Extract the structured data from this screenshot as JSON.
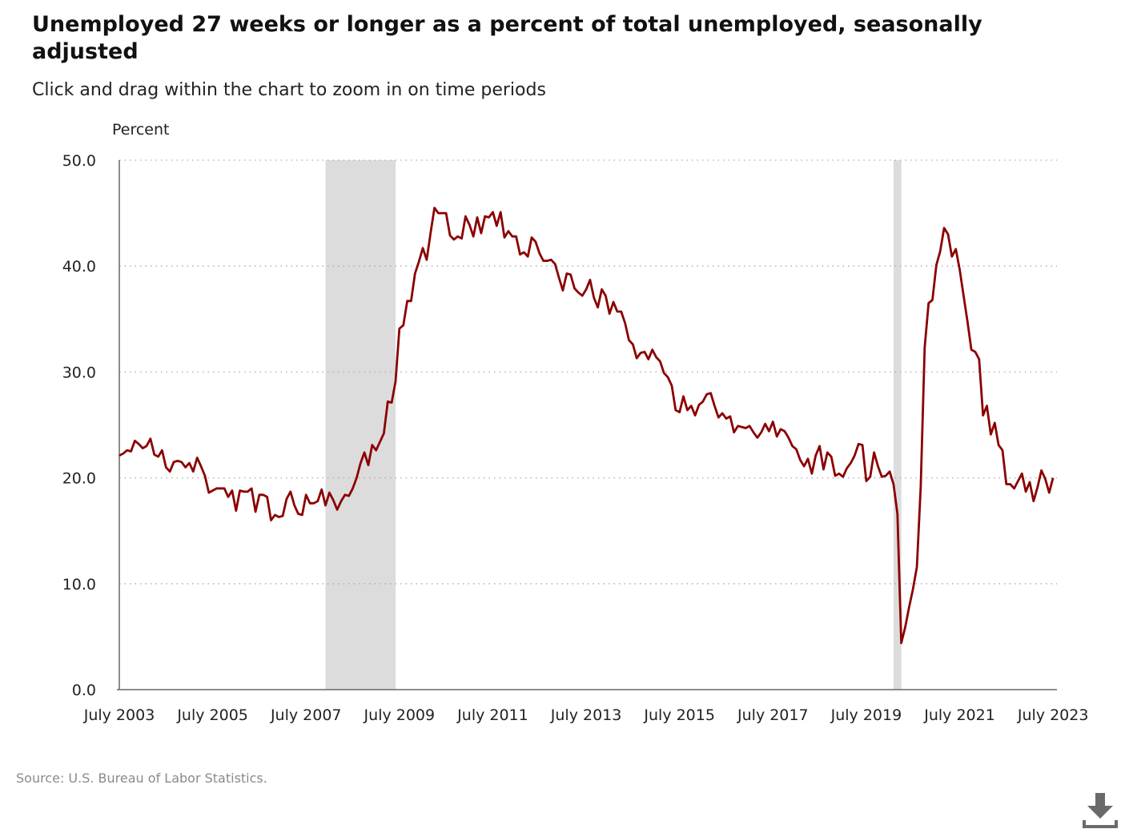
{
  "title": "Unemployed 27 weeks or longer as a percent of total unemployed, seasonally adjusted",
  "subtitle": "Click and drag within the chart to zoom in on time periods",
  "source": "Source: U.S. Bureau of Labor Statistics.",
  "download_icon": "download-icon",
  "colors": {
    "line": "#8b0000",
    "recession": "#dcdcdc",
    "grid": "#aaaaaa",
    "axis": "#666666"
  },
  "chart_data": {
    "type": "line",
    "ylabel": "Percent",
    "xlabel": "",
    "ylim": [
      0,
      50
    ],
    "y_ticks": [
      "0.0",
      "10.0",
      "20.0",
      "30.0",
      "40.0",
      "50.0"
    ],
    "x_ticks": [
      "July 2003",
      "July 2005",
      "July 2007",
      "July 2009",
      "July 2011",
      "July 2013",
      "July 2015",
      "July 2017",
      "July 2019",
      "July 2021",
      "July 2023"
    ],
    "x_range": [
      "2003-07",
      "2023-08"
    ],
    "grid": "horizontal dotted",
    "recessions": [
      [
        "2007-12",
        "2009-06"
      ],
      [
        "2020-02",
        "2020-04"
      ]
    ],
    "series": [
      {
        "points": [
          [
            "2003-07",
            22.1
          ],
          [
            "2003-08",
            22.3
          ],
          [
            "2003-09",
            22.6
          ],
          [
            "2003-10",
            22.5
          ],
          [
            "2003-11",
            23.5
          ],
          [
            "2003-12",
            23.2
          ],
          [
            "2004-01",
            22.8
          ],
          [
            "2004-02",
            23.0
          ],
          [
            "2004-03",
            23.7
          ],
          [
            "2004-04",
            22.2
          ],
          [
            "2004-05",
            22.0
          ],
          [
            "2004-06",
            22.6
          ],
          [
            "2004-07",
            21.0
          ],
          [
            "2004-08",
            20.6
          ],
          [
            "2004-09",
            21.5
          ],
          [
            "2004-10",
            21.6
          ],
          [
            "2004-11",
            21.5
          ],
          [
            "2004-12",
            21.0
          ],
          [
            "2005-01",
            21.4
          ],
          [
            "2005-02",
            20.6
          ],
          [
            "2005-03",
            21.9
          ],
          [
            "2005-04",
            21.1
          ],
          [
            "2005-05",
            20.2
          ],
          [
            "2005-06",
            18.6
          ],
          [
            "2005-07",
            18.8
          ],
          [
            "2005-08",
            19.0
          ],
          [
            "2005-09",
            19.0
          ],
          [
            "2005-10",
            19.0
          ],
          [
            "2005-11",
            18.2
          ],
          [
            "2005-12",
            18.8
          ],
          [
            "2006-01",
            16.9
          ],
          [
            "2006-02",
            18.8
          ],
          [
            "2006-03",
            18.7
          ],
          [
            "2006-04",
            18.7
          ],
          [
            "2006-05",
            19.0
          ],
          [
            "2006-06",
            16.8
          ],
          [
            "2006-07",
            18.4
          ],
          [
            "2006-08",
            18.4
          ],
          [
            "2006-09",
            18.2
          ],
          [
            "2006-10",
            16.0
          ],
          [
            "2006-11",
            16.5
          ],
          [
            "2006-12",
            16.3
          ],
          [
            "2007-01",
            16.4
          ],
          [
            "2007-02",
            18.0
          ],
          [
            "2007-03",
            18.7
          ],
          [
            "2007-04",
            17.4
          ],
          [
            "2007-05",
            16.6
          ],
          [
            "2007-06",
            16.5
          ],
          [
            "2007-07",
            18.4
          ],
          [
            "2007-08",
            17.6
          ],
          [
            "2007-09",
            17.6
          ],
          [
            "2007-10",
            17.8
          ],
          [
            "2007-11",
            18.9
          ],
          [
            "2007-12",
            17.4
          ],
          [
            "2008-01",
            18.6
          ],
          [
            "2008-02",
            17.9
          ],
          [
            "2008-03",
            17.0
          ],
          [
            "2008-04",
            17.8
          ],
          [
            "2008-05",
            18.4
          ],
          [
            "2008-06",
            18.3
          ],
          [
            "2008-07",
            19.0
          ],
          [
            "2008-08",
            20.0
          ],
          [
            "2008-09",
            21.4
          ],
          [
            "2008-10",
            22.4
          ],
          [
            "2008-11",
            21.2
          ],
          [
            "2008-12",
            23.1
          ],
          [
            "2009-01",
            22.6
          ],
          [
            "2009-02",
            23.4
          ],
          [
            "2009-03",
            24.2
          ],
          [
            "2009-04",
            27.2
          ],
          [
            "2009-05",
            27.1
          ],
          [
            "2009-06",
            29.1
          ],
          [
            "2009-07",
            34.1
          ],
          [
            "2009-08",
            34.4
          ],
          [
            "2009-09",
            36.7
          ],
          [
            "2009-10",
            36.7
          ],
          [
            "2009-11",
            39.3
          ],
          [
            "2009-12",
            40.4
          ],
          [
            "2010-01",
            41.7
          ],
          [
            "2010-02",
            40.6
          ],
          [
            "2010-03",
            43.1
          ],
          [
            "2010-04",
            45.5
          ],
          [
            "2010-05",
            45.0
          ],
          [
            "2010-06",
            45.0
          ],
          [
            "2010-07",
            45.0
          ],
          [
            "2010-08",
            42.9
          ],
          [
            "2010-09",
            42.5
          ],
          [
            "2010-10",
            42.8
          ],
          [
            "2010-11",
            42.6
          ],
          [
            "2010-12",
            44.7
          ],
          [
            "2011-01",
            43.9
          ],
          [
            "2011-02",
            42.8
          ],
          [
            "2011-03",
            44.6
          ],
          [
            "2011-04",
            43.1
          ],
          [
            "2011-05",
            44.7
          ],
          [
            "2011-06",
            44.6
          ],
          [
            "2011-07",
            45.1
          ],
          [
            "2011-08",
            43.8
          ],
          [
            "2011-09",
            45.1
          ],
          [
            "2011-10",
            42.7
          ],
          [
            "2011-11",
            43.3
          ],
          [
            "2011-12",
            42.8
          ],
          [
            "2012-01",
            42.8
          ],
          [
            "2012-02",
            41.1
          ],
          [
            "2012-03",
            41.3
          ],
          [
            "2012-04",
            40.9
          ],
          [
            "2012-05",
            42.7
          ],
          [
            "2012-06",
            42.3
          ],
          [
            "2012-07",
            41.2
          ],
          [
            "2012-08",
            40.5
          ],
          [
            "2012-09",
            40.5
          ],
          [
            "2012-10",
            40.6
          ],
          [
            "2012-11",
            40.2
          ],
          [
            "2012-12",
            38.9
          ],
          [
            "2013-01",
            37.7
          ],
          [
            "2013-02",
            39.3
          ],
          [
            "2013-03",
            39.2
          ],
          [
            "2013-04",
            37.9
          ],
          [
            "2013-05",
            37.5
          ],
          [
            "2013-06",
            37.2
          ],
          [
            "2013-07",
            37.8
          ],
          [
            "2013-08",
            38.7
          ],
          [
            "2013-09",
            37.0
          ],
          [
            "2013-10",
            36.1
          ],
          [
            "2013-11",
            37.8
          ],
          [
            "2013-12",
            37.2
          ],
          [
            "2014-01",
            35.5
          ],
          [
            "2014-02",
            36.6
          ],
          [
            "2014-03",
            35.7
          ],
          [
            "2014-04",
            35.7
          ],
          [
            "2014-05",
            34.6
          ],
          [
            "2014-06",
            33.0
          ],
          [
            "2014-07",
            32.6
          ],
          [
            "2014-08",
            31.3
          ],
          [
            "2014-09",
            31.8
          ],
          [
            "2014-10",
            31.9
          ],
          [
            "2014-11",
            31.2
          ],
          [
            "2014-12",
            32.1
          ],
          [
            "2015-01",
            31.4
          ],
          [
            "2015-02",
            31.0
          ],
          [
            "2015-03",
            29.9
          ],
          [
            "2015-04",
            29.5
          ],
          [
            "2015-05",
            28.7
          ],
          [
            "2015-06",
            26.4
          ],
          [
            "2015-07",
            26.2
          ],
          [
            "2015-08",
            27.7
          ],
          [
            "2015-09",
            26.4
          ],
          [
            "2015-10",
            26.8
          ],
          [
            "2015-11",
            25.9
          ],
          [
            "2015-12",
            26.9
          ],
          [
            "2016-01",
            27.2
          ],
          [
            "2016-02",
            27.9
          ],
          [
            "2016-03",
            28.0
          ],
          [
            "2016-04",
            26.8
          ],
          [
            "2016-05",
            25.7
          ],
          [
            "2016-06",
            26.1
          ],
          [
            "2016-07",
            25.6
          ],
          [
            "2016-08",
            25.8
          ],
          [
            "2016-09",
            24.3
          ],
          [
            "2016-10",
            24.9
          ],
          [
            "2016-11",
            24.8
          ],
          [
            "2016-12",
            24.7
          ],
          [
            "2017-01",
            24.9
          ],
          [
            "2017-02",
            24.3
          ],
          [
            "2017-03",
            23.8
          ],
          [
            "2017-04",
            24.3
          ],
          [
            "2017-05",
            25.1
          ],
          [
            "2017-06",
            24.4
          ],
          [
            "2017-07",
            25.3
          ],
          [
            "2017-08",
            23.9
          ],
          [
            "2017-09",
            24.6
          ],
          [
            "2017-10",
            24.4
          ],
          [
            "2017-11",
            23.8
          ],
          [
            "2017-12",
            23.0
          ],
          [
            "2018-01",
            22.7
          ],
          [
            "2018-02",
            21.7
          ],
          [
            "2018-03",
            21.1
          ],
          [
            "2018-04",
            21.8
          ],
          [
            "2018-05",
            20.4
          ],
          [
            "2018-06",
            22.1
          ],
          [
            "2018-07",
            23.0
          ],
          [
            "2018-08",
            20.8
          ],
          [
            "2018-09",
            22.4
          ],
          [
            "2018-10",
            22.0
          ],
          [
            "2018-11",
            20.2
          ],
          [
            "2018-12",
            20.4
          ],
          [
            "2019-01",
            20.1
          ],
          [
            "2019-02",
            20.9
          ],
          [
            "2019-03",
            21.4
          ],
          [
            "2019-04",
            22.1
          ],
          [
            "2019-05",
            23.2
          ],
          [
            "2019-06",
            23.1
          ],
          [
            "2019-07",
            19.7
          ],
          [
            "2019-08",
            20.1
          ],
          [
            "2019-09",
            22.4
          ],
          [
            "2019-10",
            21.1
          ],
          [
            "2019-11",
            20.1
          ],
          [
            "2019-12",
            20.2
          ],
          [
            "2020-01",
            20.6
          ],
          [
            "2020-02",
            19.4
          ],
          [
            "2020-03",
            16.6
          ],
          [
            "2020-04",
            4.4
          ],
          [
            "2020-05",
            5.9
          ],
          [
            "2020-06",
            7.8
          ],
          [
            "2020-07",
            9.5
          ],
          [
            "2020-08",
            11.6
          ],
          [
            "2020-09",
            19.2
          ],
          [
            "2020-10",
            32.3
          ],
          [
            "2020-11",
            36.5
          ],
          [
            "2020-12",
            36.8
          ],
          [
            "2021-01",
            40.1
          ],
          [
            "2021-02",
            41.4
          ],
          [
            "2021-03",
            43.6
          ],
          [
            "2021-04",
            43.0
          ],
          [
            "2021-05",
            40.9
          ],
          [
            "2021-06",
            41.6
          ],
          [
            "2021-07",
            39.7
          ],
          [
            "2021-08",
            37.2
          ],
          [
            "2021-09",
            34.8
          ],
          [
            "2021-10",
            32.1
          ],
          [
            "2021-11",
            31.9
          ],
          [
            "2021-12",
            31.2
          ],
          [
            "2022-01",
            25.9
          ],
          [
            "2022-02",
            26.8
          ],
          [
            "2022-03",
            24.1
          ],
          [
            "2022-04",
            25.2
          ],
          [
            "2022-05",
            23.1
          ],
          [
            "2022-06",
            22.6
          ],
          [
            "2022-07",
            19.4
          ],
          [
            "2022-08",
            19.4
          ],
          [
            "2022-09",
            19.0
          ],
          [
            "2022-10",
            19.7
          ],
          [
            "2022-11",
            20.4
          ],
          [
            "2022-12",
            18.7
          ],
          [
            "2023-01",
            19.6
          ],
          [
            "2023-02",
            17.8
          ],
          [
            "2023-03",
            19.1
          ],
          [
            "2023-04",
            20.7
          ],
          [
            "2023-05",
            19.9
          ],
          [
            "2023-06",
            18.6
          ],
          [
            "2023-07",
            20.0
          ]
        ]
      }
    ]
  }
}
